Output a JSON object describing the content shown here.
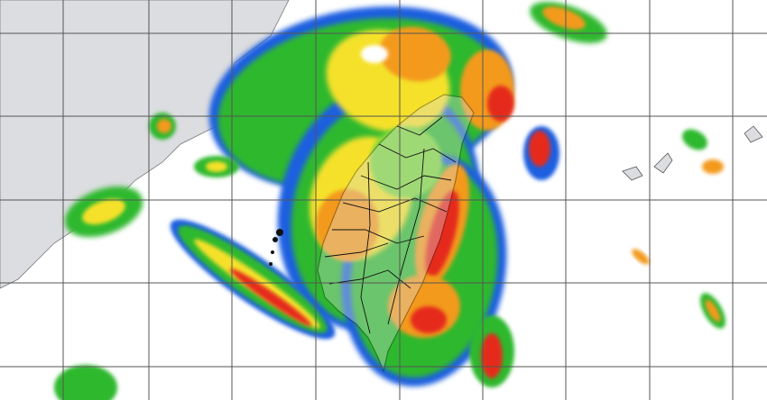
{
  "map": {
    "type": "weather-radar-composite",
    "colors": {
      "sea": "#ffffff",
      "land": "#dcdde0",
      "grid": "#555555",
      "border": "#111111",
      "echo_blue": "#1e5fe0",
      "echo_green": "#2db82d",
      "echo_lightgreen": "#7fd83a",
      "echo_yellow": "#f5e12a",
      "echo_orange": "#f39a1f",
      "echo_red": "#e52a1a"
    }
  }
}
